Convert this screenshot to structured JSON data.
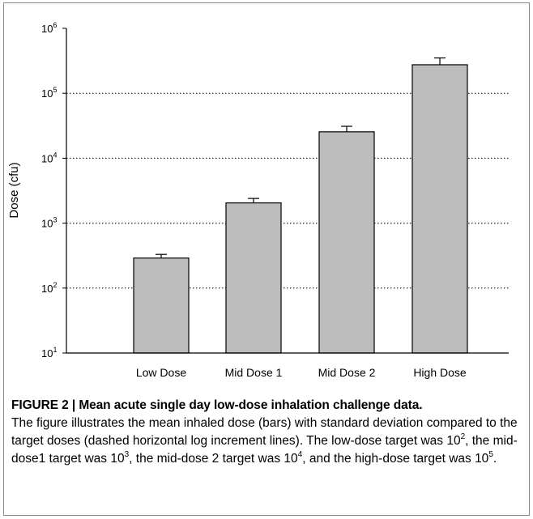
{
  "chart_data": {
    "type": "bar",
    "categories": [
      "Low Dose",
      "Mid Dose 1",
      "Mid Dose 2",
      "High Dose"
    ],
    "values": [
      290,
      2050,
      25500,
      275000
    ],
    "error_upper": [
      330,
      2400,
      31000,
      350000
    ],
    "ylabel": "Dose (cfu)",
    "xlabel": "",
    "yscale": "log",
    "ylim": [
      10,
      1000000
    ],
    "ytick_labels": [
      {
        "base": "10",
        "exp": "1",
        "value": 10
      },
      {
        "base": "10",
        "exp": "2",
        "value": 100
      },
      {
        "base": "10",
        "exp": "3",
        "value": 1000
      },
      {
        "base": "10",
        "exp": "4",
        "value": 10000
      },
      {
        "base": "10",
        "exp": "5",
        "value": 100000
      },
      {
        "base": "10",
        "exp": "6",
        "value": 1000000
      }
    ],
    "gridlines": "dotted horizontal at 10^2, 10^3, 10^4, 10^5",
    "bar_color": "#bdbdbd",
    "legend": "none"
  },
  "caption": {
    "title": "FIGURE 2 | Mean acute single day low-dose inhalation challenge data.",
    "text_1": "The figure illustrates the mean inhaled dose (bars) with standard deviation compared to the target doses (dashed horizontal log increment lines). The low-dose target was 10",
    "exp_1": "2",
    "text_2": ", the mid-dose1 target was 10",
    "exp_2": "3",
    "text_3": ", the mid-dose 2 target was 10",
    "exp_3": "4",
    "text_4": ", and the high-dose target was 10",
    "exp_4": "5",
    "text_5": "."
  }
}
